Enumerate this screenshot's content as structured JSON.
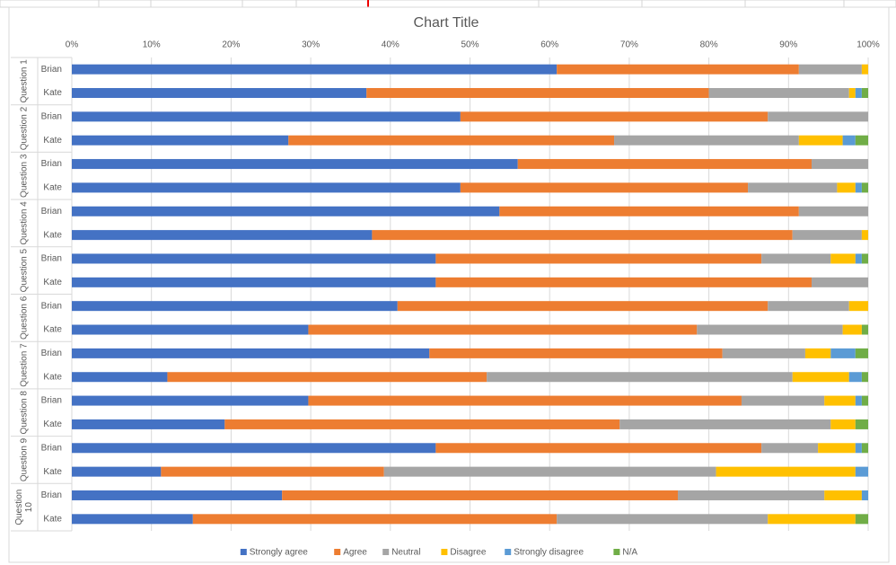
{
  "chart_data": {
    "type": "stacked-bar-100",
    "title": "Chart Title",
    "groups": [
      "Question 1",
      "Question 2",
      "Question 3",
      "Question 4",
      "Question 5",
      "Question 6",
      "Question 7",
      "Question 8",
      "Question 9",
      "Question 10"
    ],
    "categories": [
      "Brian",
      "Kate",
      "Brian",
      "Kate",
      "Brian",
      "Kate",
      "Brian",
      "Kate",
      "Brian",
      "Kate",
      "Brian",
      "Kate",
      "Brian",
      "Kate",
      "Brian",
      "Kate",
      "Brian",
      "Kate",
      "Brian",
      "Kate"
    ],
    "series": [
      {
        "name": "Strongly agree",
        "color": "#4472c4",
        "values": [
          60.9,
          37,
          48.8,
          27.2,
          56,
          48.8,
          53.7,
          37.7,
          45.7,
          45.7,
          40.9,
          29.7,
          44.9,
          12,
          29.7,
          19.2,
          45.7,
          11.2,
          26.4,
          15.2
        ]
      },
      {
        "name": "Agree",
        "color": "#ed7d31",
        "values": [
          30.4,
          43,
          38.6,
          40.9,
          36.9,
          36.1,
          37.6,
          52.8,
          40.9,
          47.2,
          46.5,
          48.8,
          36.8,
          40.1,
          54.4,
          49.6,
          40.9,
          28,
          49.7,
          45.7
        ]
      },
      {
        "name": "Neutral",
        "color": "#a5a5a5",
        "values": [
          7.9,
          17.6,
          12.6,
          23.2,
          7.1,
          11.2,
          8.7,
          8.7,
          8.7,
          7.1,
          10.2,
          18.3,
          10.4,
          38.4,
          10.4,
          26.5,
          7.1,
          41.7,
          18.4,
          26.5
        ]
      },
      {
        "name": "Disagree",
        "color": "#ffc000",
        "values": [
          0.8,
          0.8,
          0,
          5.5,
          0,
          2.3,
          0,
          0.8,
          3.1,
          0,
          2.4,
          2.4,
          3.2,
          7.1,
          3.9,
          3.1,
          4.7,
          17.5,
          4.7,
          11
        ]
      },
      {
        "name": "Strongly disagree",
        "color": "#5b9bd5",
        "values": [
          0,
          0.8,
          0,
          1.6,
          0,
          0.8,
          0,
          0,
          0.8,
          0,
          0,
          0,
          3.1,
          1.6,
          0.8,
          0,
          0.8,
          1.6,
          0.8,
          0
        ]
      },
      {
        "name": "N/A",
        "color": "#70ad47",
        "values": [
          0,
          0.8,
          0,
          1.6,
          0,
          0.8,
          0,
          0,
          0.8,
          0,
          0,
          0.8,
          1.6,
          0.8,
          0.8,
          1.6,
          0.8,
          0,
          0,
          1.6
        ]
      }
    ],
    "xlim": [
      0,
      100
    ],
    "xticks": [
      {
        "value": 0,
        "label": "0%"
      },
      {
        "value": 10,
        "label": "10%"
      },
      {
        "value": 20,
        "label": "20%"
      },
      {
        "value": 30,
        "label": "30%"
      },
      {
        "value": 40,
        "label": "40%"
      },
      {
        "value": 50,
        "label": "50%"
      },
      {
        "value": 60,
        "label": "60%"
      },
      {
        "value": 70,
        "label": "70%"
      },
      {
        "value": 80,
        "label": "80%"
      },
      {
        "value": 90,
        "label": "90%"
      },
      {
        "value": 100,
        "label": "100%"
      }
    ],
    "grid": true,
    "legend": "bottom"
  }
}
